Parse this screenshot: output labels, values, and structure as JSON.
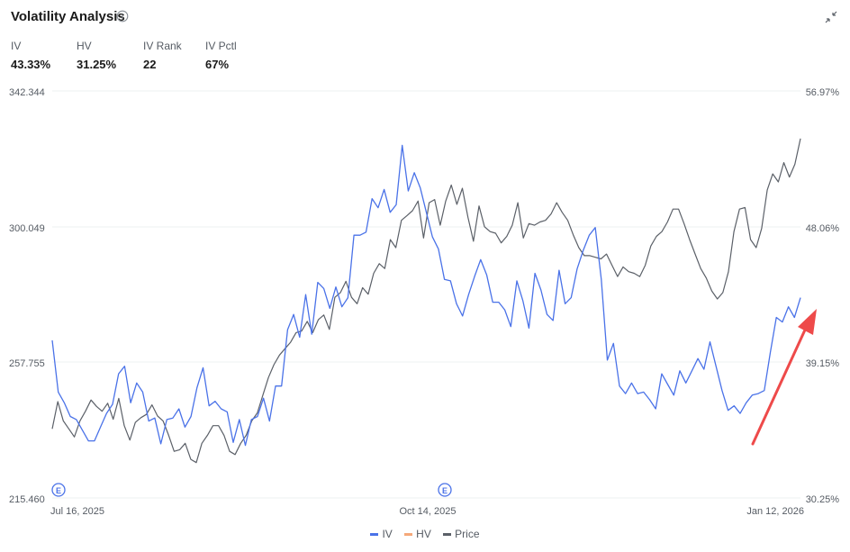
{
  "header": {
    "title": "Volatility Analysis",
    "info_icon": "info-circle-icon",
    "collapse_icon": "collapse-arrows-icon"
  },
  "stats": [
    {
      "label": "IV",
      "value": "43.33%"
    },
    {
      "label": "HV",
      "value": "31.25%"
    },
    {
      "label": "IV Rank",
      "value": "22"
    },
    {
      "label": "IV Pctl",
      "value": "67%"
    }
  ],
  "colors": {
    "iv": "#4a72e8",
    "hv": "#f5a97a",
    "price": "#5b6068",
    "arrow": "#ee4a4a",
    "grid": "#eef0f2",
    "marker": "#4a72e8"
  },
  "chart_data": {
    "type": "line",
    "grid": "horizontal",
    "legend_position": "bottom-center",
    "x_ticks": [
      "Jul 16, 2025",
      "Oct 14, 2025",
      "Jan 12, 2026"
    ],
    "left_axis_ticks": [
      "342.344",
      "300.049",
      "257.755",
      "215.460"
    ],
    "right_axis_ticks": [
      "56.97%",
      "48.06%",
      "39.15%",
      "30.25%"
    ],
    "left_axis_range": [
      215.46,
      342.344
    ],
    "right_axis_range": [
      30.25,
      56.97
    ],
    "event_markers": [
      {
        "label": "E",
        "x_date": "Jul 17, 2025"
      },
      {
        "label": "E",
        "x_date": "Oct 14, 2025"
      }
    ],
    "series": [
      {
        "name": "IV",
        "axis": "right",
        "values": [
          40.6,
          37.2,
          36.5,
          35.6,
          35.4,
          34.7,
          34.0,
          34.0,
          34.9,
          35.8,
          36.4,
          38.4,
          38.9,
          36.5,
          37.8,
          37.2,
          35.3,
          35.5,
          33.8,
          35.4,
          35.5,
          36.1,
          34.9,
          35.6,
          37.5,
          38.8,
          36.3,
          36.6,
          36.1,
          35.9,
          33.9,
          35.4,
          33.7,
          35.4,
          35.6,
          36.8,
          35.3,
          37.6,
          37.6,
          41.3,
          42.3,
          40.8,
          43.6,
          41.0,
          44.4,
          44.0,
          42.7,
          44.1,
          42.8,
          43.4,
          47.5,
          47.5,
          47.7,
          49.9,
          49.3,
          50.5,
          49.0,
          49.5,
          53.4,
          50.4,
          51.6,
          50.6,
          49.0,
          47.4,
          46.6,
          44.6,
          44.5,
          43.0,
          42.2,
          43.6,
          44.8,
          45.9,
          44.9,
          43.1,
          43.1,
          42.6,
          41.5,
          44.5,
          43.2,
          41.4,
          45.0,
          43.9,
          42.3,
          41.9,
          45.2,
          43.0,
          43.4,
          45.3,
          46.5,
          47.5,
          48.0,
          44.6,
          39.3,
          40.4,
          37.6,
          37.1,
          37.8,
          37.1,
          37.2,
          36.7,
          36.1,
          38.4,
          37.7,
          37.0,
          38.6,
          37.8,
          38.6,
          39.4,
          38.7,
          40.5,
          38.9,
          37.3,
          36.0,
          36.3,
          35.8,
          36.5,
          37.0,
          37.1,
          37.3,
          39.8,
          42.1,
          41.8,
          42.8,
          42.1,
          43.4
        ]
      },
      {
        "name": "HV",
        "axis": "right",
        "values": []
      },
      {
        "name": "Price",
        "axis": "left",
        "values": [
          237.0,
          245.5,
          239.5,
          237.0,
          234.5,
          239.5,
          242.5,
          246.0,
          244.0,
          242.5,
          245.0,
          240.0,
          246.5,
          238.0,
          233.5,
          239.0,
          240.5,
          241.5,
          244.5,
          241.0,
          239.5,
          235.0,
          230.0,
          230.5,
          232.5,
          227.5,
          226.5,
          232.5,
          235.0,
          238.0,
          238.0,
          235.0,
          230.0,
          229.0,
          232.5,
          235.0,
          239.5,
          242.0,
          247.5,
          253.0,
          257.0,
          260.0,
          262.0,
          264.0,
          267.0,
          267.5,
          270.5,
          267.0,
          271.0,
          272.5,
          268.0,
          278.0,
          279.5,
          283.0,
          278.0,
          276.0,
          281.0,
          279.0,
          285.5,
          288.5,
          287.0,
          296.0,
          293.5,
          302.0,
          303.5,
          305.0,
          308.0,
          296.5,
          307.5,
          308.5,
          300.5,
          308.0,
          313.0,
          307.0,
          312.0,
          303.0,
          295.5,
          306.5,
          300.0,
          298.5,
          298.0,
          295.0,
          297.0,
          300.5,
          307.5,
          296.5,
          301.0,
          300.5,
          301.5,
          302.0,
          304.0,
          307.5,
          304.5,
          302.0,
          297.5,
          293.5,
          291.0,
          291.0,
          290.5,
          290.0,
          291.5,
          288.0,
          284.5,
          287.5,
          286.0,
          285.5,
          284.5,
          288.0,
          294.0,
          297.0,
          298.5,
          301.5,
          305.5,
          305.5,
          301.0,
          296.0,
          291.5,
          287.0,
          284.0,
          280.0,
          277.5,
          279.5,
          286.0,
          298.5,
          305.5,
          306.0,
          296.0,
          293.5,
          299.5,
          311.5,
          316.5,
          314.0,
          320.0,
          315.5,
          319.5,
          327.5
        ]
      }
    ]
  },
  "legend": [
    {
      "label": "IV"
    },
    {
      "label": "HV"
    },
    {
      "label": "Price"
    }
  ]
}
